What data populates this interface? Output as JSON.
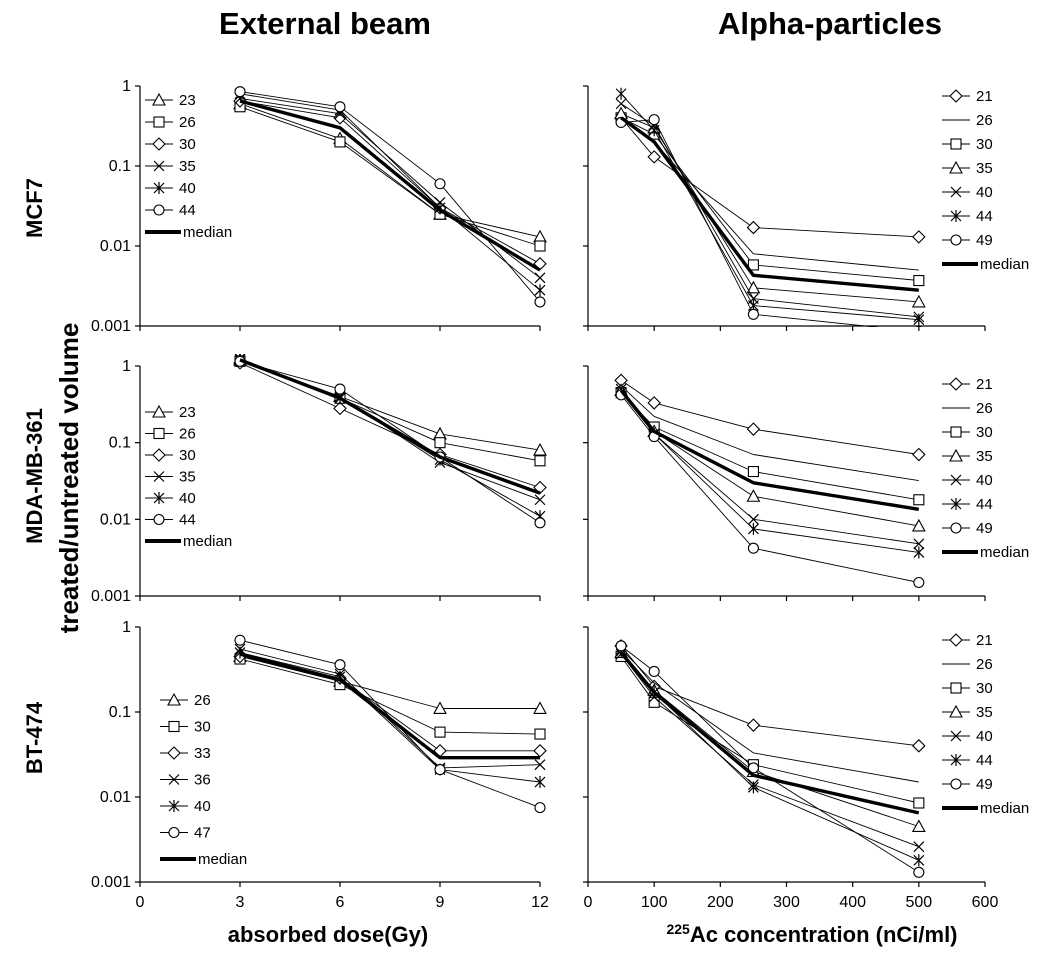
{
  "figure": {
    "col_titles": [
      "External beam",
      "Alpha-particles"
    ],
    "row_labels": [
      "MCF7",
      "MDA-MB-361",
      "BT-474"
    ],
    "ylabel": "treated/untreated volume",
    "xlabel_left": "absorbed dose(Gy)",
    "xlabel_right_sup": "225",
    "xlabel_right": "Ac concentration (nCi/ml)"
  },
  "chart_data": [
    {
      "type": "line",
      "row": 0,
      "col": 0,
      "yscale": "log",
      "ylim": [
        0.001,
        1
      ],
      "xlim": [
        0,
        12
      ],
      "yticks": [
        "0.001",
        "0.01",
        "0.1",
        "1"
      ],
      "xticks": [],
      "legend": "left",
      "x": [
        3,
        6,
        9,
        12
      ],
      "series": [
        {
          "name": "23",
          "marker": "triangle",
          "values": [
            0.6,
            0.22,
            0.025,
            0.013
          ]
        },
        {
          "name": "26",
          "marker": "square",
          "values": [
            0.55,
            0.2,
            0.025,
            0.01
          ]
        },
        {
          "name": "30",
          "marker": "diamond",
          "values": [
            0.65,
            0.4,
            0.03,
            0.006
          ]
        },
        {
          "name": "35",
          "marker": "x",
          "values": [
            0.7,
            0.45,
            0.035,
            0.004
          ]
        },
        {
          "name": "40",
          "marker": "star",
          "values": [
            0.8,
            0.5,
            0.03,
            0.0028
          ]
        },
        {
          "name": "44",
          "marker": "circle",
          "values": [
            0.85,
            0.55,
            0.06,
            0.002
          ]
        },
        {
          "name": "median",
          "marker": "none",
          "bold": true,
          "values": [
            0.65,
            0.3,
            0.028,
            0.005
          ]
        }
      ]
    },
    {
      "type": "line",
      "row": 0,
      "col": 1,
      "yscale": "log",
      "ylim": [
        0.001,
        1
      ],
      "xlim": [
        0,
        600
      ],
      "yticks": [],
      "xticks": [],
      "legend": "right",
      "x": [
        50,
        100,
        250,
        500
      ],
      "series": [
        {
          "name": "21",
          "marker": "diamond",
          "values": [
            0.4,
            0.13,
            0.017,
            0.013
          ]
        },
        {
          "name": "26",
          "marker": "none",
          "values": [
            0.38,
            0.2,
            0.008,
            0.005
          ]
        },
        {
          "name": "30",
          "marker": "square",
          "values": [
            0.4,
            0.25,
            0.0058,
            0.0037
          ]
        },
        {
          "name": "35",
          "marker": "triangle",
          "values": [
            0.45,
            0.3,
            0.003,
            0.002
          ]
        },
        {
          "name": "40",
          "marker": "x",
          "values": [
            0.6,
            0.32,
            0.0022,
            0.0013
          ]
        },
        {
          "name": "44",
          "marker": "star",
          "values": [
            0.8,
            0.28,
            0.0018,
            0.0012
          ]
        },
        {
          "name": "49",
          "marker": "circle",
          "values": [
            0.35,
            0.38,
            0.0014,
            0.0008
          ]
        },
        {
          "name": "median",
          "marker": "none",
          "bold": true,
          "values": [
            0.4,
            0.2,
            0.0043,
            0.0028
          ]
        }
      ]
    },
    {
      "type": "line",
      "row": 1,
      "col": 0,
      "yscale": "log",
      "ylim": [
        0.001,
        1
      ],
      "xlim": [
        0,
        12
      ],
      "yticks": [
        "0.001",
        "0.01",
        "0.1",
        "1"
      ],
      "xticks": [],
      "legend": "left",
      "x": [
        3,
        6,
        9,
        12
      ],
      "series": [
        {
          "name": "23",
          "marker": "triangle",
          "values": [
            1.2,
            0.4,
            0.13,
            0.08
          ]
        },
        {
          "name": "26",
          "marker": "square",
          "values": [
            1.15,
            0.38,
            0.1,
            0.058
          ]
        },
        {
          "name": "30",
          "marker": "diamond",
          "values": [
            1.1,
            0.28,
            0.07,
            0.026
          ]
        },
        {
          "name": "35",
          "marker": "x",
          "values": [
            1.2,
            0.4,
            0.055,
            0.018
          ]
        },
        {
          "name": "40",
          "marker": "star",
          "values": [
            1.25,
            0.38,
            0.06,
            0.011
          ]
        },
        {
          "name": "44",
          "marker": "circle",
          "values": [
            1.15,
            0.5,
            0.065,
            0.009
          ]
        },
        {
          "name": "median",
          "marker": "none",
          "bold": true,
          "values": [
            1.2,
            0.38,
            0.065,
            0.022
          ]
        }
      ]
    },
    {
      "type": "line",
      "row": 1,
      "col": 1,
      "yscale": "log",
      "ylim": [
        0.001,
        1
      ],
      "xlim": [
        0,
        600
      ],
      "yticks": [],
      "xticks": [],
      "legend": "right",
      "x": [
        50,
        100,
        250,
        500
      ],
      "series": [
        {
          "name": "21",
          "marker": "diamond",
          "values": [
            0.65,
            0.33,
            0.15,
            0.07
          ]
        },
        {
          "name": "26",
          "marker": "none",
          "values": [
            0.55,
            0.22,
            0.07,
            0.032
          ]
        },
        {
          "name": "30",
          "marker": "square",
          "values": [
            0.45,
            0.16,
            0.042,
            0.018
          ]
        },
        {
          "name": "35",
          "marker": "triangle",
          "values": [
            0.48,
            0.14,
            0.02,
            0.0082
          ]
        },
        {
          "name": "40",
          "marker": "x",
          "values": [
            0.5,
            0.13,
            0.01,
            0.0048
          ]
        },
        {
          "name": "44",
          "marker": "star",
          "values": [
            0.45,
            0.13,
            0.0075,
            0.0037
          ]
        },
        {
          "name": "49",
          "marker": "circle",
          "values": [
            0.42,
            0.12,
            0.0042,
            0.0015
          ]
        },
        {
          "name": "median",
          "marker": "none",
          "bold": true,
          "values": [
            0.48,
            0.14,
            0.03,
            0.0135
          ]
        }
      ]
    },
    {
      "type": "line",
      "row": 2,
      "col": 0,
      "yscale": "log",
      "ylim": [
        0.001,
        1
      ],
      "xlim": [
        0,
        12
      ],
      "yticks": [
        "0.001",
        "0.01",
        "0.1",
        "1"
      ],
      "xticks": [
        "0",
        "3",
        "6",
        "9",
        "12"
      ],
      "legend": "left",
      "x": [
        3,
        6,
        9,
        12
      ],
      "series": [
        {
          "name": "26",
          "marker": "triangle",
          "values": [
            0.45,
            0.23,
            0.11,
            0.11
          ]
        },
        {
          "name": "30",
          "marker": "square",
          "values": [
            0.42,
            0.21,
            0.058,
            0.055
          ]
        },
        {
          "name": "33",
          "marker": "diamond",
          "values": [
            0.45,
            0.25,
            0.035,
            0.035
          ]
        },
        {
          "name": "36",
          "marker": "x",
          "values": [
            0.55,
            0.28,
            0.022,
            0.024
          ]
        },
        {
          "name": "40",
          "marker": "star",
          "values": [
            0.5,
            0.26,
            0.021,
            0.015
          ]
        },
        {
          "name": "47",
          "marker": "circle",
          "values": [
            0.7,
            0.36,
            0.021,
            0.0075
          ]
        },
        {
          "name": "median",
          "marker": "none",
          "bold": true,
          "values": [
            0.48,
            0.24,
            0.029,
            0.029
          ]
        }
      ]
    },
    {
      "type": "line",
      "row": 2,
      "col": 1,
      "yscale": "log",
      "ylim": [
        0.001,
        1
      ],
      "xlim": [
        0,
        600
      ],
      "yticks": [],
      "xticks": [
        "0",
        "100",
        "200",
        "300",
        "400",
        "500",
        "600"
      ],
      "legend": "right",
      "x": [
        50,
        100,
        250,
        500
      ],
      "series": [
        {
          "name": "21",
          "marker": "diamond",
          "values": [
            0.6,
            0.2,
            0.07,
            0.04
          ]
        },
        {
          "name": "26",
          "marker": "none",
          "values": [
            0.55,
            0.22,
            0.033,
            0.015
          ]
        },
        {
          "name": "30",
          "marker": "square",
          "values": [
            0.45,
            0.13,
            0.024,
            0.0085
          ]
        },
        {
          "name": "35",
          "marker": "triangle",
          "values": [
            0.5,
            0.18,
            0.02,
            0.0045
          ]
        },
        {
          "name": "40",
          "marker": "x",
          "values": [
            0.48,
            0.15,
            0.014,
            0.0026
          ]
        },
        {
          "name": "44",
          "marker": "star",
          "values": [
            0.52,
            0.17,
            0.013,
            0.0018
          ]
        },
        {
          "name": "49",
          "marker": "circle",
          "values": [
            0.6,
            0.3,
            0.022,
            0.0013
          ]
        },
        {
          "name": "median",
          "marker": "none",
          "bold": true,
          "values": [
            0.5,
            0.17,
            0.018,
            0.0065
          ]
        }
      ]
    }
  ]
}
